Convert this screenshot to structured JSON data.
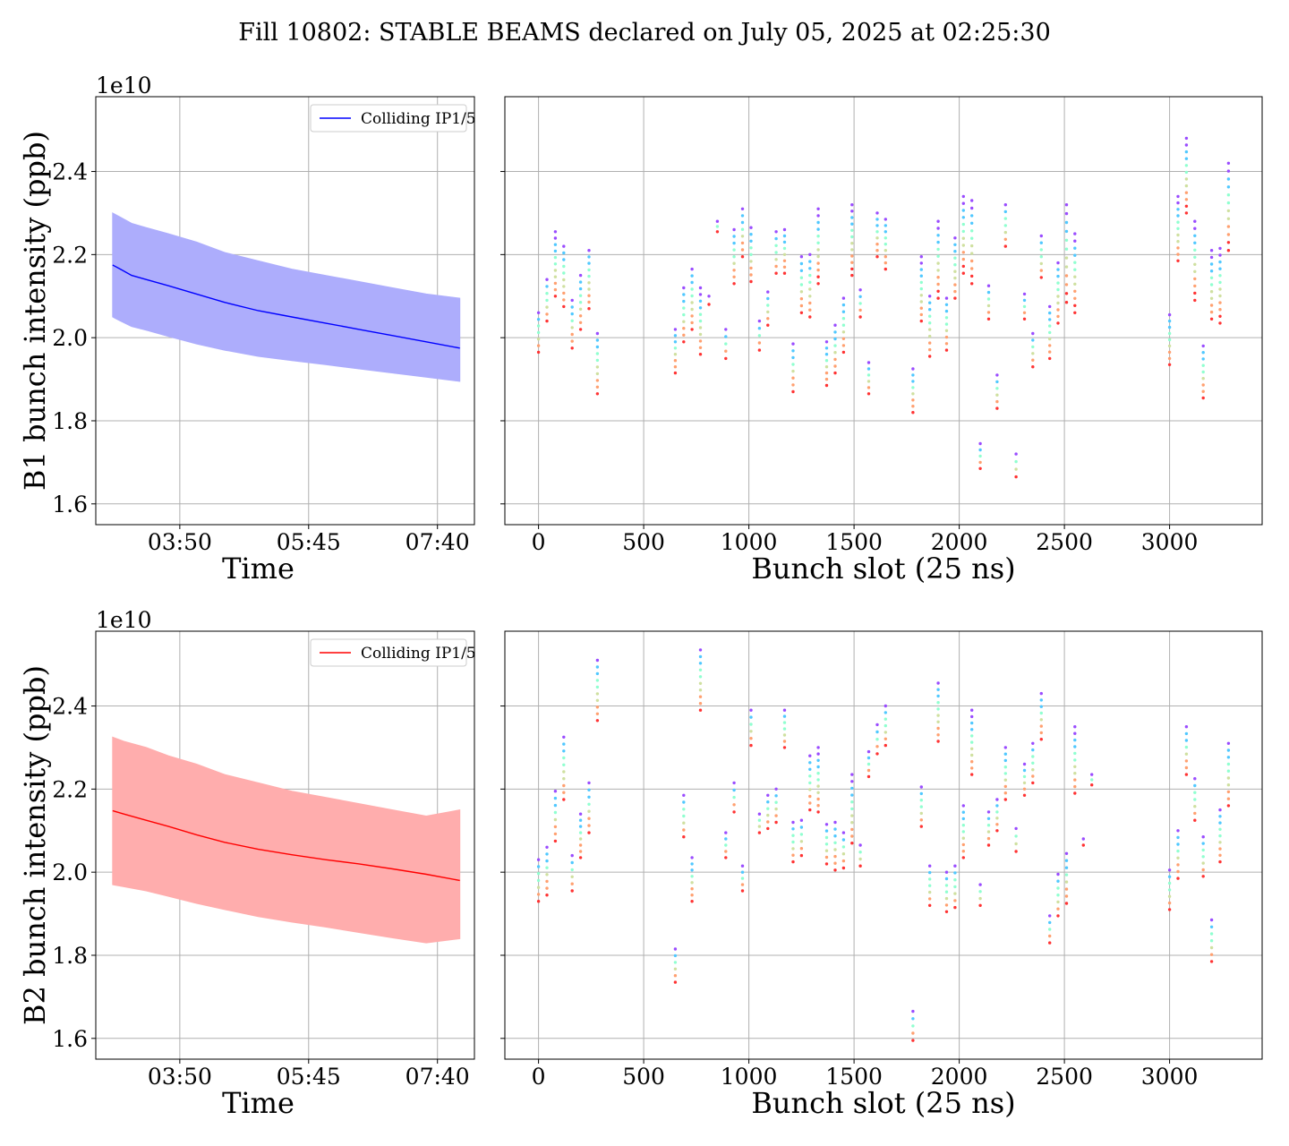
{
  "figure": {
    "title": "Fill 10802: STABLE BEAMS declared on July 05, 2025 at 02:25:30"
  },
  "colors": {
    "b1_line": "#0000ff",
    "b1_fill": "#adadfc",
    "b2_line": "#ff0000",
    "b2_fill": "#ffadad",
    "grid": "#b0b0b0",
    "scatter_palette": [
      "#ff3333",
      "#ffa070",
      "#cfe0a0",
      "#90ffd0",
      "#50c8ff",
      "#9a4cff"
    ]
  },
  "chart_data": [
    {
      "id": "b1_time",
      "type": "area",
      "title": "",
      "xlabel": "Time",
      "ylabel": "B1 bunch intensity (ppb)",
      "y_scale_label": "1e10",
      "x_ticks": [
        "03:50",
        "05:45",
        "07:40"
      ],
      "x_tick_minutes": [
        230,
        345,
        460
      ],
      "xlim_minutes": [
        155,
        493
      ],
      "ylim": [
        1.55,
        2.58
      ],
      "y_ticks": [
        1.6,
        1.8,
        2.0,
        2.2,
        2.4
      ],
      "grid": true,
      "legend": {
        "position": "upper-right",
        "entries": [
          "Colliding IP1/5"
        ]
      },
      "series": [
        {
          "name": "Colliding IP1/5",
          "x_minutes": [
            170,
            177,
            187,
            200,
            220,
            245,
            270,
            300,
            330,
            360,
            390,
            420,
            450,
            480
          ],
          "mean": [
            2.175,
            2.165,
            2.15,
            2.14,
            2.125,
            2.105,
            2.085,
            2.065,
            2.05,
            2.035,
            2.02,
            2.005,
            1.99,
            1.975
          ],
          "upper": [
            2.3,
            2.29,
            2.275,
            2.265,
            2.25,
            2.23,
            2.205,
            2.185,
            2.165,
            2.15,
            2.135,
            2.12,
            2.105,
            2.095
          ],
          "lower": [
            2.05,
            2.04,
            2.027,
            2.018,
            2.003,
            1.985,
            1.97,
            1.955,
            1.945,
            1.935,
            1.925,
            1.915,
            1.905,
            1.895
          ]
        }
      ]
    },
    {
      "id": "b1_slot",
      "type": "scatter",
      "title": "",
      "xlabel": "Bunch slot (25 ns)",
      "ylabel": "",
      "xlim": [
        -160,
        3440
      ],
      "ylim": [
        1.55,
        2.58
      ],
      "x_ticks": [
        0,
        500,
        1000,
        1500,
        2000,
        2500,
        3000
      ],
      "grid": true,
      "trains": [
        [
          0,
          1.965,
          2.06
        ],
        [
          40,
          2.04,
          2.14
        ],
        [
          80,
          2.1,
          2.255
        ],
        [
          120,
          2.075,
          2.22
        ],
        [
          160,
          1.975,
          2.09
        ],
        [
          200,
          2.02,
          2.15
        ],
        [
          240,
          2.07,
          2.21
        ],
        [
          280,
          1.865,
          2.01
        ],
        [
          650,
          1.915,
          2.02
        ],
        [
          690,
          1.99,
          2.12
        ],
        [
          730,
          2.02,
          2.165
        ],
        [
          770,
          1.96,
          2.12
        ],
        [
          810,
          2.08,
          2.1
        ],
        [
          850,
          2.255,
          2.28
        ],
        [
          890,
          1.95,
          2.02
        ],
        [
          930,
          2.13,
          2.26
        ],
        [
          970,
          2.195,
          2.31
        ],
        [
          1010,
          2.135,
          2.265
        ],
        [
          1050,
          1.97,
          2.04
        ],
        [
          1090,
          2.03,
          2.11
        ],
        [
          1130,
          2.155,
          2.255
        ],
        [
          1170,
          2.155,
          2.26
        ],
        [
          1210,
          1.87,
          1.985
        ],
        [
          1250,
          2.06,
          2.195
        ],
        [
          1290,
          2.05,
          2.2
        ],
        [
          1330,
          2.13,
          2.31
        ],
        [
          1370,
          1.885,
          1.99
        ],
        [
          1410,
          1.915,
          2.03
        ],
        [
          1450,
          1.965,
          2.095
        ],
        [
          1490,
          2.15,
          2.32
        ],
        [
          1530,
          2.05,
          2.115
        ],
        [
          1570,
          1.865,
          1.94
        ],
        [
          1610,
          2.195,
          2.3
        ],
        [
          1650,
          2.165,
          2.285
        ],
        [
          1780,
          1.82,
          1.925
        ],
        [
          1820,
          2.04,
          2.195
        ],
        [
          1860,
          1.955,
          2.1
        ],
        [
          1900,
          2.095,
          2.28
        ],
        [
          1940,
          1.97,
          2.095
        ],
        [
          1980,
          2.095,
          2.24
        ],
        [
          2020,
          2.155,
          2.34
        ],
        [
          2060,
          2.13,
          2.33
        ],
        [
          2100,
          1.685,
          1.745
        ],
        [
          2140,
          2.045,
          2.125
        ],
        [
          2180,
          1.83,
          1.91
        ],
        [
          2220,
          2.22,
          2.32
        ],
        [
          2270,
          1.665,
          1.72
        ],
        [
          2310,
          2.045,
          2.105
        ],
        [
          2350,
          1.93,
          2.01
        ],
        [
          2390,
          2.145,
          2.245
        ],
        [
          2430,
          1.95,
          2.075
        ],
        [
          2470,
          2.035,
          2.18
        ],
        [
          2510,
          2.085,
          2.32
        ],
        [
          2550,
          2.06,
          2.25
        ],
        [
          3000,
          1.935,
          2.055
        ],
        [
          3040,
          2.185,
          2.34
        ],
        [
          3080,
          2.3,
          2.48
        ],
        [
          3120,
          2.09,
          2.28
        ],
        [
          3160,
          1.855,
          1.98
        ],
        [
          3200,
          2.045,
          2.21
        ],
        [
          3240,
          2.035,
          2.215
        ],
        [
          3280,
          2.21,
          2.42
        ]
      ]
    },
    {
      "id": "b2_time",
      "type": "area",
      "title": "",
      "xlabel": "Time",
      "ylabel": "B2 bunch intensity (ppb)",
      "y_scale_label": "1e10",
      "x_ticks": [
        "03:50",
        "05:45",
        "07:40"
      ],
      "x_tick_minutes": [
        230,
        345,
        460
      ],
      "xlim_minutes": [
        155,
        493
      ],
      "ylim": [
        1.55,
        2.58
      ],
      "y_ticks": [
        1.6,
        1.8,
        2.0,
        2.2,
        2.4
      ],
      "grid": true,
      "legend": {
        "position": "upper-right",
        "entries": [
          "Colliding IP1/5"
        ]
      },
      "series": [
        {
          "name": "Colliding IP1/5",
          "x_minutes": [
            170,
            180,
            200,
            220,
            245,
            270,
            300,
            330,
            360,
            390,
            420,
            450,
            480
          ],
          "mean": [
            2.148,
            2.14,
            2.125,
            2.11,
            2.09,
            2.072,
            2.055,
            2.042,
            2.03,
            2.02,
            2.008,
            1.995,
            1.98
          ],
          "upper": [
            2.325,
            2.315,
            2.3,
            2.28,
            2.26,
            2.235,
            2.215,
            2.195,
            2.18,
            2.165,
            2.15,
            2.135,
            2.15
          ],
          "lower": [
            1.97,
            1.965,
            1.955,
            1.942,
            1.925,
            1.91,
            1.893,
            1.88,
            1.868,
            1.855,
            1.842,
            1.83,
            1.84
          ]
        }
      ]
    },
    {
      "id": "b2_slot",
      "type": "scatter",
      "title": "",
      "xlabel": "Bunch slot (25 ns)",
      "ylabel": "",
      "xlim": [
        -160,
        3440
      ],
      "ylim": [
        1.55,
        2.58
      ],
      "x_ticks": [
        0,
        500,
        1000,
        1500,
        2000,
        2500,
        3000
      ],
      "grid": true,
      "trains": [
        [
          0,
          1.93,
          2.03
        ],
        [
          40,
          1.945,
          2.06
        ],
        [
          80,
          2.075,
          2.195
        ],
        [
          120,
          2.175,
          2.325
        ],
        [
          160,
          1.955,
          2.04
        ],
        [
          200,
          2.035,
          2.14
        ],
        [
          240,
          2.095,
          2.215
        ],
        [
          280,
          2.365,
          2.51
        ],
        [
          650,
          1.735,
          1.815
        ],
        [
          690,
          2.085,
          2.185
        ],
        [
          730,
          1.93,
          2.035
        ],
        [
          770,
          2.39,
          2.535
        ],
        [
          890,
          2.035,
          2.095
        ],
        [
          930,
          2.145,
          2.215
        ],
        [
          970,
          1.955,
          2.015
        ],
        [
          1010,
          2.305,
          2.39
        ],
        [
          1050,
          2.095,
          2.14
        ],
        [
          1090,
          2.105,
          2.185
        ],
        [
          1130,
          2.12,
          2.2
        ],
        [
          1170,
          2.3,
          2.39
        ],
        [
          1210,
          2.025,
          2.12
        ],
        [
          1250,
          2.04,
          2.125
        ],
        [
          1290,
          2.15,
          2.28
        ],
        [
          1330,
          2.145,
          2.3
        ],
        [
          1370,
          2.02,
          2.115
        ],
        [
          1410,
          2.005,
          2.12
        ],
        [
          1450,
          2.01,
          2.095
        ],
        [
          1490,
          2.07,
          2.235
        ],
        [
          1530,
          2.015,
          2.065
        ],
        [
          1570,
          2.23,
          2.29
        ],
        [
          1610,
          2.285,
          2.355
        ],
        [
          1650,
          2.305,
          2.4
        ],
        [
          1780,
          1.595,
          1.665
        ],
        [
          1820,
          2.11,
          2.205
        ],
        [
          1860,
          1.92,
          2.015
        ],
        [
          1900,
          2.315,
          2.455
        ],
        [
          1940,
          1.905,
          2.0
        ],
        [
          1980,
          1.915,
          2.015
        ],
        [
          2020,
          2.035,
          2.16
        ],
        [
          2060,
          2.235,
          2.39
        ],
        [
          2100,
          1.92,
          1.97
        ],
        [
          2140,
          2.065,
          2.145
        ],
        [
          2180,
          2.1,
          2.175
        ],
        [
          2220,
          2.175,
          2.3
        ],
        [
          2270,
          2.05,
          2.105
        ],
        [
          2310,
          2.185,
          2.26
        ],
        [
          2350,
          2.215,
          2.31
        ],
        [
          2390,
          2.32,
          2.43
        ],
        [
          2430,
          1.83,
          1.895
        ],
        [
          2470,
          1.895,
          1.995
        ],
        [
          2510,
          1.925,
          2.045
        ],
        [
          2550,
          2.19,
          2.35
        ],
        [
          2590,
          2.065,
          2.08
        ],
        [
          2630,
          2.21,
          2.235
        ],
        [
          3000,
          1.91,
          2.005
        ],
        [
          3040,
          1.985,
          2.1
        ],
        [
          3080,
          2.235,
          2.35
        ],
        [
          3120,
          2.125,
          2.225
        ],
        [
          3160,
          1.99,
          2.085
        ],
        [
          3200,
          1.785,
          1.885
        ],
        [
          3240,
          2.025,
          2.15
        ],
        [
          3280,
          2.16,
          2.31
        ]
      ]
    }
  ]
}
